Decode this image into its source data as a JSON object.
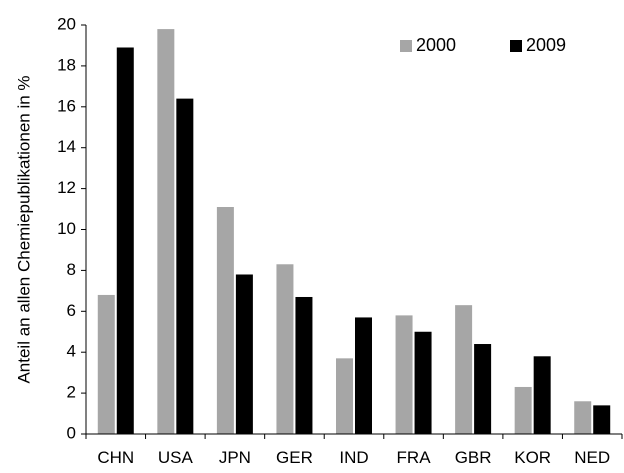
{
  "chart_data": {
    "type": "bar",
    "categories": [
      "CHN",
      "USA",
      "JPN",
      "GER",
      "IND",
      "FRA",
      "GBR",
      "KOR",
      "NED"
    ],
    "series": [
      {
        "name": "2000",
        "color": "#a6a6a6",
        "values": [
          6.8,
          19.8,
          11.1,
          8.3,
          3.7,
          5.8,
          6.3,
          2.3,
          1.6
        ]
      },
      {
        "name": "2009",
        "color": "#000000",
        "values": [
          18.9,
          16.4,
          7.8,
          6.7,
          5.7,
          5.0,
          4.4,
          3.8,
          1.4
        ]
      }
    ],
    "ylabel": "Anteil an allen Chemiepublikationen in %",
    "xlabel": "",
    "ylim": [
      0,
      20
    ],
    "yticks": [
      0,
      2,
      4,
      6,
      8,
      10,
      12,
      14,
      16,
      18,
      20
    ],
    "grid": false,
    "legend": "top-right"
  }
}
